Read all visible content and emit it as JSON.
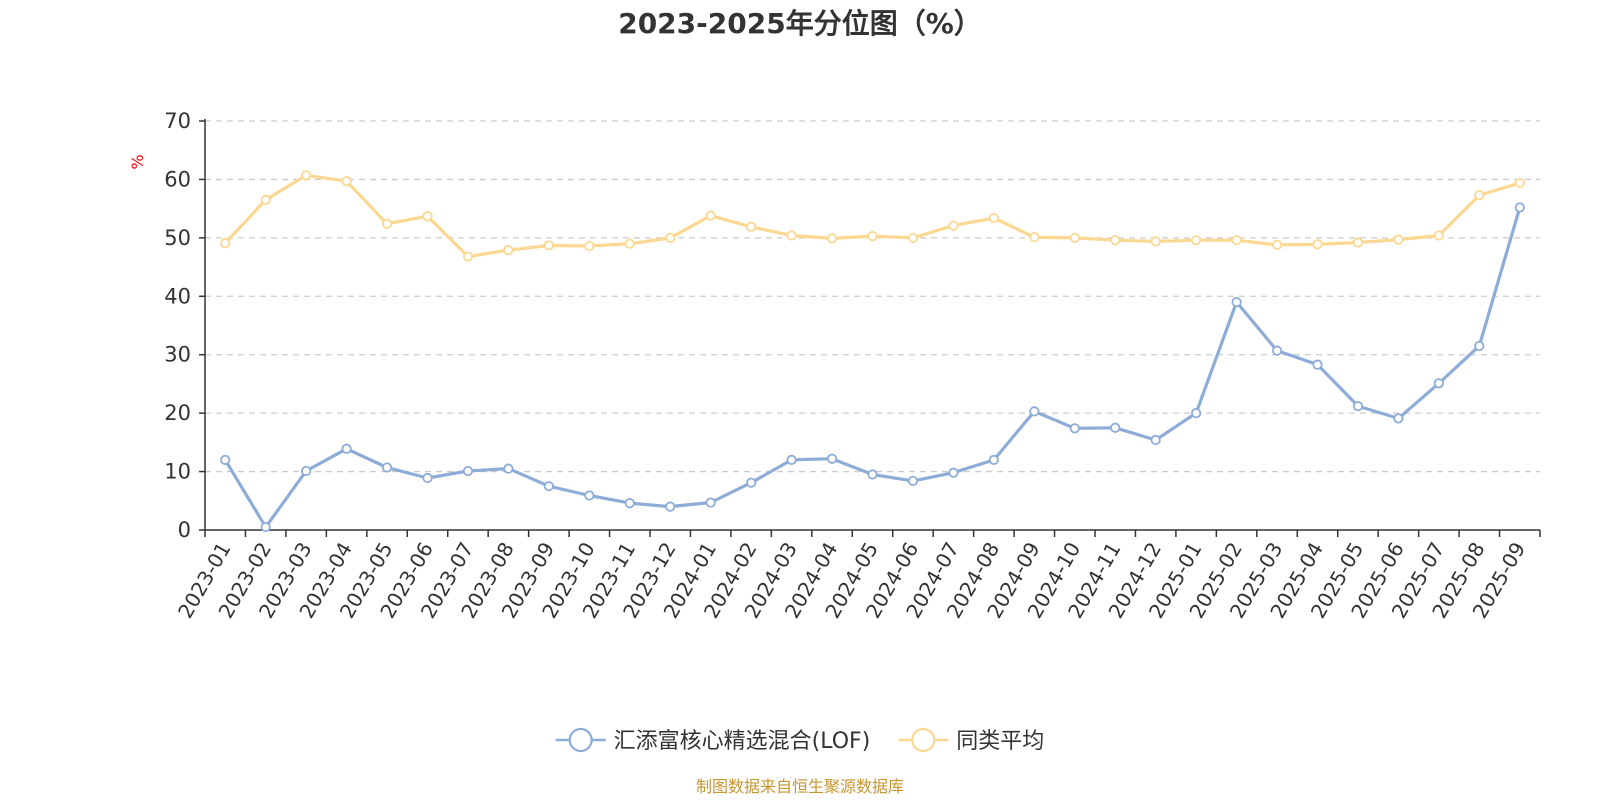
{
  "chart_data": {
    "type": "line",
    "title": "2023-2025年分位图（%）",
    "ylabel": "%",
    "ylim": [
      0,
      70
    ],
    "yticks": [
      0,
      10,
      20,
      30,
      40,
      50,
      60,
      70
    ],
    "grid": true,
    "legend_position": "bottom-center",
    "categories": [
      "2023-01",
      "2023-02",
      "2023-03",
      "2023-04",
      "2023-05",
      "2023-06",
      "2023-07",
      "2023-08",
      "2023-09",
      "2023-10",
      "2023-11",
      "2023-12",
      "2024-01",
      "2024-02",
      "2024-03",
      "2024-04",
      "2024-05",
      "2024-06",
      "2024-07",
      "2024-08",
      "2024-09",
      "2024-10",
      "2024-11",
      "2024-12",
      "2025-01",
      "2025-02",
      "2025-03",
      "2025-04",
      "2025-05",
      "2025-06",
      "2025-07",
      "2025-08",
      "2025-09"
    ],
    "series": [
      {
        "name": "汇添富核心精选混合(LOF)",
        "color": "#8eacd8",
        "values": [
          12.0,
          0.5,
          10.1,
          13.9,
          10.7,
          8.9,
          10.1,
          10.5,
          7.5,
          5.9,
          4.6,
          4.0,
          4.7,
          8.1,
          12.0,
          12.2,
          9.5,
          8.4,
          9.8,
          12.0,
          20.3,
          17.4,
          17.5,
          15.4,
          20.0,
          39.0,
          30.7,
          28.3,
          21.2,
          19.1,
          25.1,
          31.5,
          55.2
        ]
      },
      {
        "name": "同类平均",
        "color": "#fbd892",
        "values": [
          49.1,
          56.5,
          60.7,
          59.7,
          52.4,
          53.7,
          46.8,
          47.9,
          48.7,
          48.6,
          49.0,
          50.0,
          53.8,
          51.9,
          50.4,
          49.9,
          50.3,
          50.0,
          52.1,
          53.4,
          50.1,
          50.0,
          49.6,
          49.4,
          49.6,
          49.6,
          48.8,
          48.9,
          49.2,
          49.7,
          50.4,
          57.3,
          59.4
        ]
      }
    ],
    "unit_color": "#ff0000",
    "source_text": "制图数据来自恒生聚源数据库",
    "source_color": "#c89630"
  }
}
